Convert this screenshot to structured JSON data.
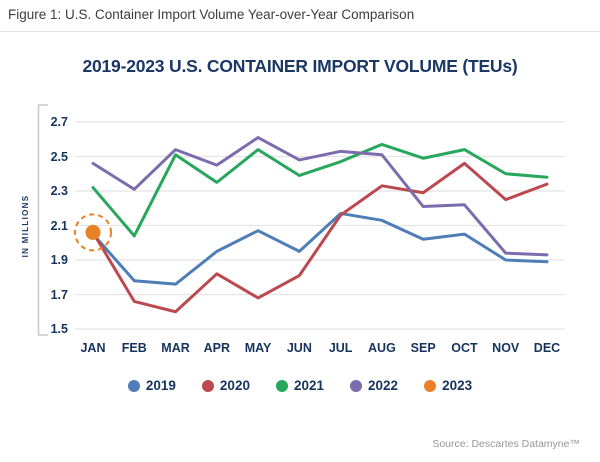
{
  "figure_caption": "Figure 1: U.S. Container Import Volume Year-over-Year Comparison",
  "source": "Source: Descartes Datamyne™",
  "colors": {
    "title_navy": "#1b3765",
    "tick_navy": "#16335f",
    "gridline": "#e4e4e4",
    "axis_bracket": "#c9c9c9",
    "caption_text": "#3d3d3d",
    "source_text": "#979797"
  },
  "chart_data": {
    "type": "line",
    "title": "2019-2023 U.S. CONTAINER IMPORT VOLUME (TEUs)",
    "xlabel": "",
    "ylabel": "IN MILLIONS",
    "x_labels": [
      "JAN",
      "FEB",
      "MAR",
      "APR",
      "MAY",
      "JUN",
      "JUL",
      "AUG",
      "SEP",
      "OCT",
      "NOV",
      "DEC"
    ],
    "y_ticks": [
      "2.7",
      "2.5",
      "2.3",
      "2.1",
      "1.9",
      "1.7",
      "1.5"
    ],
    "ylim": [
      1.5,
      2.7
    ],
    "grid": "horizontal",
    "legend_position": "bottom",
    "series": [
      {
        "name": "2019",
        "color": "#4e7db8",
        "values": [
          2.05,
          1.78,
          1.76,
          1.95,
          2.07,
          1.95,
          2.17,
          2.13,
          2.02,
          2.05,
          1.9,
          1.89
        ]
      },
      {
        "name": "2020",
        "color": "#bb4a50",
        "values": [
          2.06,
          1.66,
          1.6,
          1.82,
          1.68,
          1.81,
          2.16,
          2.33,
          2.29,
          2.46,
          2.25,
          2.34
        ]
      },
      {
        "name": "2021",
        "color": "#27a65c",
        "values": [
          2.32,
          2.04,
          2.51,
          2.35,
          2.54,
          2.39,
          2.47,
          2.57,
          2.49,
          2.54,
          2.4,
          2.38
        ]
      },
      {
        "name": "2022",
        "color": "#7c6cae",
        "values": [
          2.46,
          2.31,
          2.54,
          2.45,
          2.61,
          2.48,
          2.53,
          2.51,
          2.21,
          2.22,
          1.94,
          1.93
        ]
      },
      {
        "name": "2023",
        "color": "#e98126",
        "values": [
          2.06
        ]
      }
    ],
    "annotation": {
      "type": "dashed-circle",
      "series": "2023",
      "month": "JAN",
      "value": 2.06
    }
  }
}
